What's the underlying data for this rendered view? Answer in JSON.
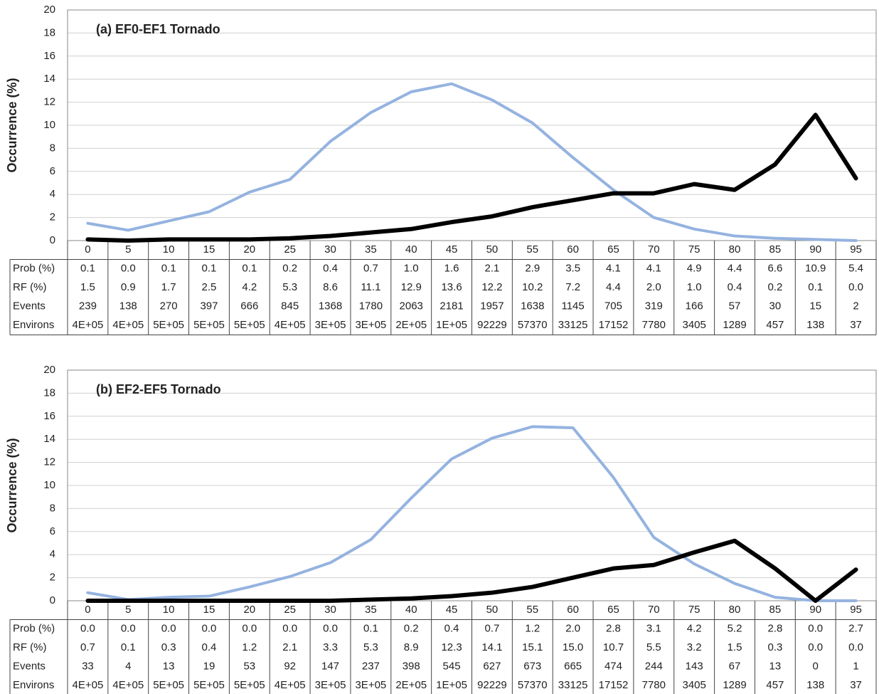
{
  "chart_data": [
    {
      "type": "line",
      "title": "(a) EF0-EF1 Tornado",
      "y_label": "Occurrence (%)",
      "categories": [
        0,
        5,
        10,
        15,
        20,
        25,
        30,
        35,
        40,
        45,
        50,
        55,
        60,
        65,
        70,
        75,
        80,
        85,
        90,
        95
      ],
      "ylim": [
        0,
        20
      ],
      "yticks": [
        0,
        2,
        4,
        6,
        8,
        10,
        12,
        14,
        16,
        18,
        20
      ],
      "grid": true,
      "series": [
        {
          "name": "Prob (%)",
          "color": "#000000",
          "values": [
            0.1,
            0.0,
            0.1,
            0.1,
            0.1,
            0.2,
            0.4,
            0.7,
            1.0,
            1.6,
            2.1,
            2.9,
            3.5,
            4.1,
            4.1,
            4.9,
            4.4,
            6.6,
            10.9,
            5.4
          ],
          "value_labels": [
            "0.1",
            "0.0",
            "0.1",
            "0.1",
            "0.1",
            "0.2",
            "0.4",
            "0.7",
            "1.0",
            "1.6",
            "2.1",
            "2.9",
            "3.5",
            "4.1",
            "4.1",
            "4.9",
            "4.4",
            "6.6",
            "10.9",
            "5.4"
          ]
        },
        {
          "name": "RF (%)",
          "color": "#95b3e0",
          "values": [
            1.5,
            0.9,
            1.7,
            2.5,
            4.2,
            5.3,
            8.6,
            11.1,
            12.9,
            13.6,
            12.2,
            10.2,
            7.2,
            4.4,
            2.0,
            1.0,
            0.4,
            0.2,
            0.1,
            0.0
          ],
          "value_labels": [
            "1.5",
            "0.9",
            "1.7",
            "2.5",
            "4.2",
            "5.3",
            "8.6",
            "11.1",
            "12.9",
            "13.6",
            "12.2",
            "10.2",
            "7.2",
            "4.4",
            "2.0",
            "1.0",
            "0.4",
            "0.2",
            "0.1",
            "0.0"
          ]
        }
      ],
      "table": [
        {
          "name": "Events",
          "values": [
            239,
            138,
            270,
            397,
            666,
            845,
            1368,
            1780,
            2063,
            2181,
            1957,
            1638,
            1145,
            705,
            319,
            166,
            57,
            30,
            15,
            2
          ]
        },
        {
          "name": "Environs",
          "values": [
            400000,
            400000,
            500000,
            500000,
            500000,
            400000,
            300000,
            300000,
            200000,
            100000,
            92229,
            57370,
            33125,
            17152,
            7780,
            3405,
            1289,
            457,
            138,
            37
          ],
          "value_labels": [
            "4E+05",
            "4E+05",
            "5E+05",
            "5E+05",
            "5E+05",
            "4E+05",
            "3E+05",
            "3E+05",
            "2E+05",
            "1E+05",
            "92229",
            "57370",
            "33125",
            "17152",
            "7780",
            "3405",
            "1289",
            "457",
            "138",
            "37"
          ]
        }
      ]
    },
    {
      "type": "line",
      "title": "(b) EF2-EF5 Tornado",
      "y_label": "Occurrence (%)",
      "categories": [
        0,
        5,
        10,
        15,
        20,
        25,
        30,
        35,
        40,
        45,
        50,
        55,
        60,
        65,
        70,
        75,
        80,
        85,
        90,
        95
      ],
      "ylim": [
        0,
        20
      ],
      "yticks": [
        0,
        2,
        4,
        6,
        8,
        10,
        12,
        14,
        16,
        18,
        20
      ],
      "grid": true,
      "series": [
        {
          "name": "Prob (%)",
          "color": "#000000",
          "values": [
            0.0,
            0.0,
            0.0,
            0.0,
            0.0,
            0.0,
            0.0,
            0.1,
            0.2,
            0.4,
            0.7,
            1.2,
            2.0,
            2.8,
            3.1,
            4.2,
            5.2,
            2.8,
            0.0,
            2.7
          ],
          "value_labels": [
            "0.0",
            "0.0",
            "0.0",
            "0.0",
            "0.0",
            "0.0",
            "0.0",
            "0.1",
            "0.2",
            "0.4",
            "0.7",
            "1.2",
            "2.0",
            "2.8",
            "3.1",
            "4.2",
            "5.2",
            "2.8",
            "0.0",
            "2.7"
          ]
        },
        {
          "name": "RF (%)",
          "color": "#95b3e0",
          "values": [
            0.7,
            0.1,
            0.3,
            0.4,
            1.2,
            2.1,
            3.3,
            5.3,
            8.9,
            12.3,
            14.1,
            15.1,
            15.0,
            10.7,
            5.5,
            3.2,
            1.5,
            0.3,
            0.0,
            0.0
          ],
          "value_labels": [
            "0.7",
            "0.1",
            "0.3",
            "0.4",
            "1.2",
            "2.1",
            "3.3",
            "5.3",
            "8.9",
            "12.3",
            "14.1",
            "15.1",
            "15.0",
            "10.7",
            "5.5",
            "3.2",
            "1.5",
            "0.3",
            "0.0",
            "0.0"
          ]
        }
      ],
      "table": [
        {
          "name": "Events",
          "values": [
            33,
            4,
            13,
            19,
            53,
            92,
            147,
            237,
            398,
            545,
            627,
            673,
            665,
            474,
            244,
            143,
            67,
            13,
            0,
            1
          ]
        },
        {
          "name": "Environs",
          "values": [
            400000,
            400000,
            500000,
            500000,
            500000,
            400000,
            300000,
            300000,
            200000,
            100000,
            92229,
            57370,
            33125,
            17152,
            7780,
            3405,
            1289,
            457,
            138,
            37
          ],
          "value_labels": [
            "4E+05",
            "4E+05",
            "5E+05",
            "5E+05",
            "5E+05",
            "4E+05",
            "3E+05",
            "3E+05",
            "2E+05",
            "1E+05",
            "92229",
            "57370",
            "33125",
            "17152",
            "7780",
            "3405",
            "1289",
            "457",
            "138",
            "37"
          ]
        }
      ]
    }
  ]
}
